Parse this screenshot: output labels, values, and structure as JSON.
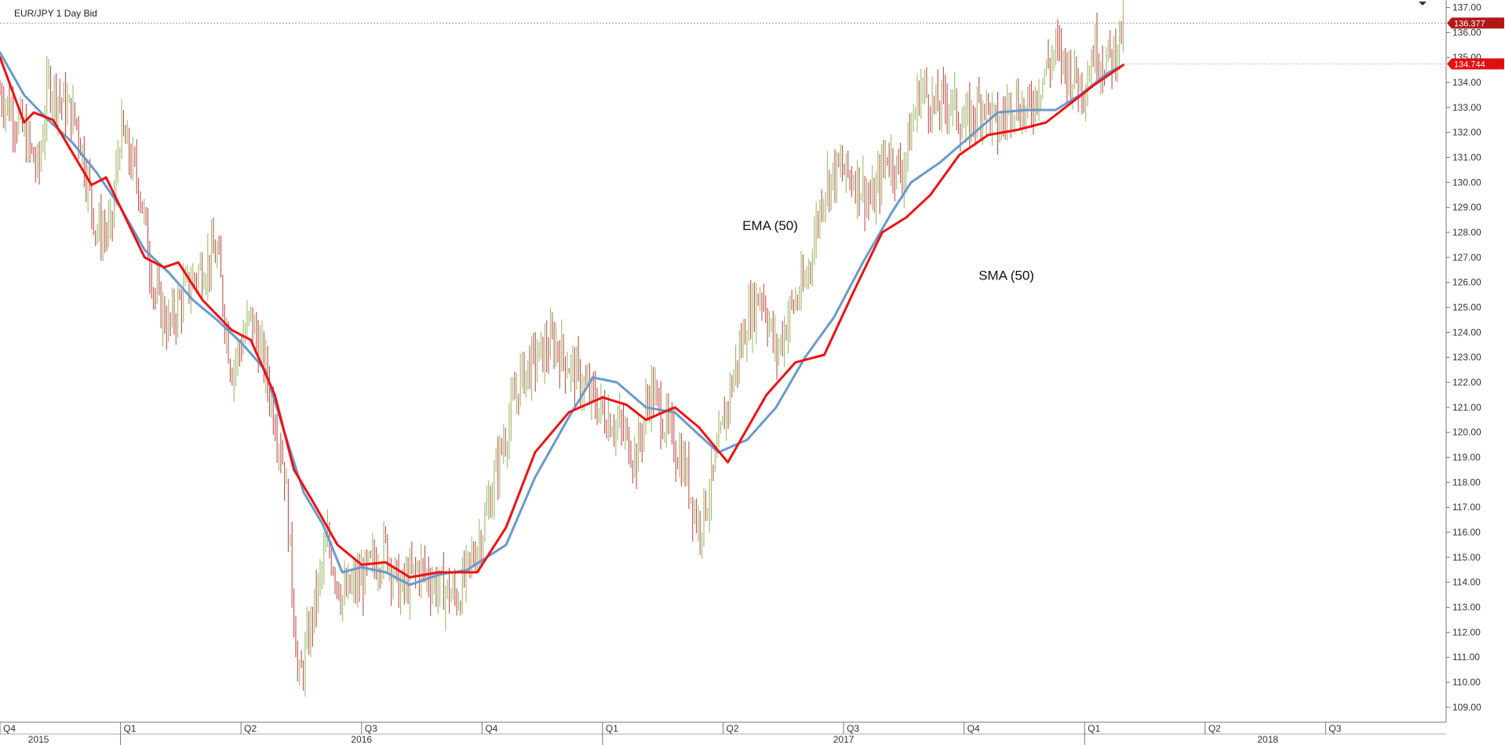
{
  "header": {
    "title": "EUR/JPY  1 Day Bid"
  },
  "chart_data": {
    "type": "line",
    "title": "EUR/JPY  1 Day Bid",
    "ylim": [
      108.4,
      137.3
    ],
    "y_ticks": [
      137.0,
      136.0,
      135.0,
      134.0,
      133.0,
      132.0,
      131.0,
      130.0,
      129.0,
      128.0,
      127.0,
      126.0,
      125.0,
      124.0,
      123.0,
      122.0,
      121.0,
      120.0,
      119.0,
      118.0,
      117.0,
      116.0,
      115.0,
      114.0,
      113.0,
      112.0,
      111.0,
      110.0,
      109.0
    ],
    "y_tick_labels": [
      "137.00",
      "136.00",
      "135.00",
      "134.00",
      "133.00",
      "132.00",
      "131.00",
      "130.00",
      "129.00",
      "128.00",
      "127.00",
      "126.00",
      "125.00",
      "124.00",
      "123.00",
      "122.00",
      "121.00",
      "120.00",
      "119.00",
      "118.00",
      "117.00",
      "116.00",
      "115.00",
      "114.00",
      "113.00",
      "112.00",
      "111.00",
      "110.00",
      "109.00"
    ],
    "x_range": [
      2015.75,
      2018.75
    ],
    "quarter_ticks": [
      {
        "label": "Q4",
        "t": 2015.75
      },
      {
        "label": "Q1",
        "t": 2016.0
      },
      {
        "label": "Q2",
        "t": 2016.25
      },
      {
        "label": "Q3",
        "t": 2016.5
      },
      {
        "label": "Q4",
        "t": 2016.75
      },
      {
        "label": "Q1",
        "t": 2017.0
      },
      {
        "label": "Q2",
        "t": 2017.25
      },
      {
        "label": "Q3",
        "t": 2017.5
      },
      {
        "label": "Q4",
        "t": 2017.75
      },
      {
        "label": "Q1",
        "t": 2018.0
      },
      {
        "label": "Q2",
        "t": 2018.25
      },
      {
        "label": "Q3",
        "t": 2018.5
      }
    ],
    "year_labels": [
      {
        "label": "2015",
        "t": 2015.83
      },
      {
        "label": "2016",
        "t": 2016.5
      },
      {
        "label": "2017",
        "t": 2017.5
      },
      {
        "label": "2018",
        "t": 2018.38
      }
    ],
    "year_dividers": [
      2016.0,
      2017.0,
      2018.0
    ],
    "annotations": [
      {
        "text": "EMA (50)",
        "t": 2017.29,
        "y": 128.1
      },
      {
        "text": "SMA (50)",
        "t": 2017.78,
        "y": 126.1
      }
    ],
    "price_markers": [
      {
        "label": "136.377",
        "value": 136.377,
        "color": "#b01818"
      },
      {
        "label": "134.744",
        "value": 134.744,
        "color": "#e01010"
      }
    ],
    "series": [
      {
        "name": "EMA (50)",
        "color": "#ee1111",
        "points": [
          [
            2015.75,
            135.0
          ],
          [
            2015.8,
            132.4
          ],
          [
            2015.82,
            132.8
          ],
          [
            2015.86,
            132.5
          ],
          [
            2015.94,
            129.9
          ],
          [
            2015.97,
            130.2
          ],
          [
            2016.05,
            127.0
          ],
          [
            2016.09,
            126.6
          ],
          [
            2016.12,
            126.8
          ],
          [
            2016.17,
            125.3
          ],
          [
            2016.23,
            124.1
          ],
          [
            2016.27,
            123.7
          ],
          [
            2016.32,
            121.5
          ],
          [
            2016.36,
            118.5
          ],
          [
            2016.4,
            117.2
          ],
          [
            2016.45,
            115.5
          ],
          [
            2016.5,
            114.7
          ],
          [
            2016.55,
            114.8
          ],
          [
            2016.6,
            114.2
          ],
          [
            2016.66,
            114.4
          ],
          [
            2016.74,
            114.4
          ],
          [
            2016.8,
            116.2
          ],
          [
            2016.86,
            119.2
          ],
          [
            2016.93,
            120.8
          ],
          [
            2017.0,
            121.4
          ],
          [
            2017.05,
            121.1
          ],
          [
            2017.09,
            120.5
          ],
          [
            2017.15,
            121.0
          ],
          [
            2017.2,
            120.2
          ],
          [
            2017.26,
            118.8
          ],
          [
            2017.34,
            121.5
          ],
          [
            2017.4,
            122.8
          ],
          [
            2017.46,
            123.1
          ],
          [
            2017.52,
            125.6
          ],
          [
            2017.58,
            128.0
          ],
          [
            2017.63,
            128.6
          ],
          [
            2017.68,
            129.5
          ],
          [
            2017.74,
            131.1
          ],
          [
            2017.8,
            131.9
          ],
          [
            2017.86,
            132.1
          ],
          [
            2017.92,
            132.4
          ],
          [
            2017.98,
            133.3
          ],
          [
            2018.02,
            133.9
          ],
          [
            2018.08,
            134.7
          ]
        ]
      },
      {
        "name": "SMA (50)",
        "color": "#6a9acb",
        "points": [
          [
            2015.75,
            135.2
          ],
          [
            2015.8,
            133.5
          ],
          [
            2015.85,
            132.5
          ],
          [
            2015.9,
            131.6
          ],
          [
            2015.95,
            130.4
          ],
          [
            2016.0,
            129.0
          ],
          [
            2016.05,
            127.3
          ],
          [
            2016.1,
            126.4
          ],
          [
            2016.15,
            125.3
          ],
          [
            2016.2,
            124.5
          ],
          [
            2016.25,
            123.6
          ],
          [
            2016.3,
            122.5
          ],
          [
            2016.34,
            120.0
          ],
          [
            2016.38,
            117.6
          ],
          [
            2016.42,
            116.3
          ],
          [
            2016.46,
            114.4
          ],
          [
            2016.5,
            114.6
          ],
          [
            2016.55,
            114.4
          ],
          [
            2016.6,
            113.9
          ],
          [
            2016.66,
            114.3
          ],
          [
            2016.72,
            114.5
          ],
          [
            2016.8,
            115.5
          ],
          [
            2016.86,
            118.2
          ],
          [
            2016.93,
            120.6
          ],
          [
            2016.98,
            122.2
          ],
          [
            2017.03,
            122.0
          ],
          [
            2017.09,
            121.0
          ],
          [
            2017.15,
            120.8
          ],
          [
            2017.2,
            119.9
          ],
          [
            2017.24,
            119.2
          ],
          [
            2017.3,
            119.7
          ],
          [
            2017.36,
            121.0
          ],
          [
            2017.42,
            123.0
          ],
          [
            2017.48,
            124.6
          ],
          [
            2017.54,
            126.8
          ],
          [
            2017.6,
            128.8
          ],
          [
            2017.64,
            130.0
          ],
          [
            2017.7,
            130.8
          ],
          [
            2017.76,
            131.8
          ],
          [
            2017.82,
            132.8
          ],
          [
            2017.88,
            132.9
          ],
          [
            2017.94,
            132.9
          ],
          [
            2017.99,
            133.5
          ],
          [
            2018.05,
            134.4
          ],
          [
            2018.08,
            134.7
          ]
        ]
      }
    ],
    "price_path": [
      [
        2015.75,
        133.6
      ],
      [
        2015.79,
        132.4
      ],
      [
        2015.83,
        130.4
      ],
      [
        2015.85,
        134.0
      ],
      [
        2015.88,
        133.2
      ],
      [
        2015.91,
        132.4
      ],
      [
        2015.95,
        128.1
      ],
      [
        2015.98,
        128.0
      ],
      [
        2016.0,
        132.1
      ],
      [
        2016.04,
        129.8
      ],
      [
        2016.07,
        125.6
      ],
      [
        2016.1,
        124.2
      ],
      [
        2016.13,
        125.5
      ],
      [
        2016.16,
        126.4
      ],
      [
        2016.2,
        127.2
      ],
      [
        2016.23,
        122.5
      ],
      [
        2016.27,
        124.6
      ],
      [
        2016.3,
        122.6
      ],
      [
        2016.34,
        118.6
      ],
      [
        2016.37,
        109.8
      ],
      [
        2016.4,
        112.8
      ],
      [
        2016.43,
        115.6
      ],
      [
        2016.46,
        113.4
      ],
      [
        2016.5,
        114.1
      ],
      [
        2016.55,
        115.4
      ],
      [
        2016.58,
        113.6
      ],
      [
        2016.62,
        114.6
      ],
      [
        2016.66,
        113.8
      ],
      [
        2016.7,
        113.4
      ],
      [
        2016.75,
        116.0
      ],
      [
        2016.79,
        119.3
      ],
      [
        2016.83,
        122.2
      ],
      [
        2016.86,
        122.9
      ],
      [
        2016.9,
        123.6
      ],
      [
        2016.93,
        122.7
      ],
      [
        2016.97,
        121.6
      ],
      [
        2017.0,
        120.8
      ],
      [
        2017.04,
        120.1
      ],
      [
        2017.07,
        119.0
      ],
      [
        2017.1,
        121.8
      ],
      [
        2017.13,
        120.3
      ],
      [
        2017.17,
        118.6
      ],
      [
        2017.2,
        116.2
      ],
      [
        2017.23,
        118.2
      ],
      [
        2017.26,
        121.3
      ],
      [
        2017.3,
        124.5
      ],
      [
        2017.33,
        125.7
      ],
      [
        2017.36,
        123.1
      ],
      [
        2017.39,
        124.9
      ],
      [
        2017.42,
        125.9
      ],
      [
        2017.46,
        129.9
      ],
      [
        2017.49,
        130.5
      ],
      [
        2017.53,
        130.1
      ],
      [
        2017.56,
        129.1
      ],
      [
        2017.59,
        131.2
      ],
      [
        2017.62,
        130.3
      ],
      [
        2017.66,
        133.9
      ],
      [
        2017.69,
        132.9
      ],
      [
        2017.72,
        133.4
      ],
      [
        2017.75,
        132.2
      ],
      [
        2017.79,
        133.3
      ],
      [
        2017.82,
        132.1
      ],
      [
        2017.85,
        133.4
      ],
      [
        2017.88,
        132.7
      ],
      [
        2017.91,
        134.1
      ],
      [
        2017.94,
        135.3
      ],
      [
        2017.97,
        134.4
      ],
      [
        2018.0,
        133.9
      ],
      [
        2018.02,
        135.4
      ],
      [
        2018.04,
        134.8
      ],
      [
        2018.06,
        135.1
      ],
      [
        2018.08,
        136.4
      ]
    ]
  }
}
